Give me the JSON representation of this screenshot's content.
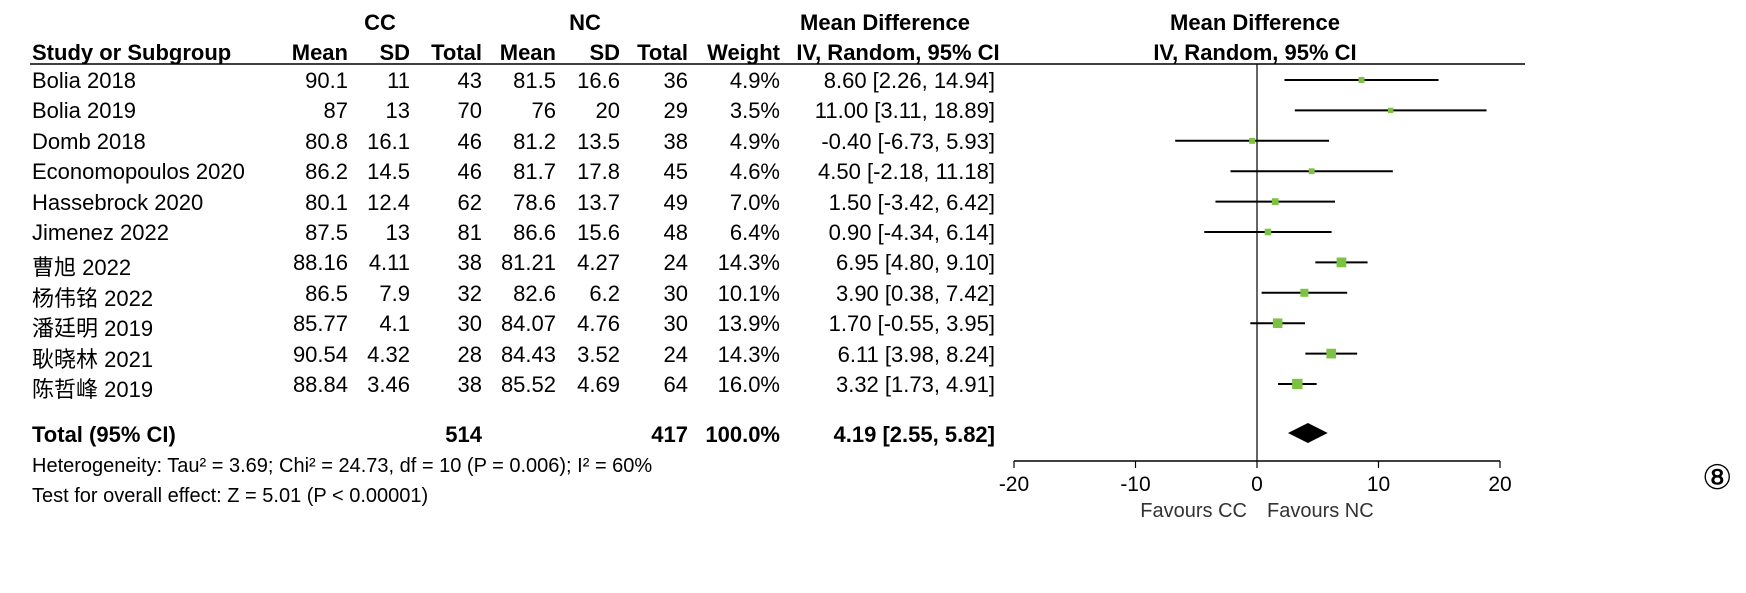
{
  "header": {
    "group1": "CC",
    "group2": "NC",
    "md_title": "Mean Difference",
    "md_title_plot": "Mean Difference",
    "columns": {
      "study": "Study or Subgroup",
      "mean1": "Mean",
      "sd1": "SD",
      "total1": "Total",
      "mean2": "Mean",
      "sd2": "SD",
      "total2": "Total",
      "weight": "Weight",
      "method": "IV, Random, 95% CI",
      "method_plot": "IV, Random, 95% CI"
    }
  },
  "studies": [
    {
      "name": "Bolia 2018",
      "mean1": "90.1",
      "sd1": "11",
      "total1": "43",
      "mean2": "81.5",
      "sd2": "16.6",
      "total2": "36",
      "weight": "4.9%",
      "ci": "8.60 [2.26, 14.94]"
    },
    {
      "name": "Bolia 2019",
      "mean1": "87",
      "sd1": "13",
      "total1": "70",
      "mean2": "76",
      "sd2": "20",
      "total2": "29",
      "weight": "3.5%",
      "ci": "11.00 [3.11, 18.89]"
    },
    {
      "name": "Domb 2018",
      "mean1": "80.8",
      "sd1": "16.1",
      "total1": "46",
      "mean2": "81.2",
      "sd2": "13.5",
      "total2": "38",
      "weight": "4.9%",
      "ci": "-0.40 [-6.73, 5.93]"
    },
    {
      "name": "Economopoulos 2020",
      "mean1": "86.2",
      "sd1": "14.5",
      "total1": "46",
      "mean2": "81.7",
      "sd2": "17.8",
      "total2": "45",
      "weight": "4.6%",
      "ci": "4.50 [-2.18, 11.18]"
    },
    {
      "name": "Hassebrock 2020",
      "mean1": "80.1",
      "sd1": "12.4",
      "total1": "62",
      "mean2": "78.6",
      "sd2": "13.7",
      "total2": "49",
      "weight": "7.0%",
      "ci": "1.50 [-3.42, 6.42]"
    },
    {
      "name": "Jimenez 2022",
      "mean1": "87.5",
      "sd1": "13",
      "total1": "81",
      "mean2": "86.6",
      "sd2": "15.6",
      "total2": "48",
      "weight": "6.4%",
      "ci": "0.90 [-4.34, 6.14]"
    },
    {
      "name": "曹旭 2022",
      "mean1": "88.16",
      "sd1": "4.11",
      "total1": "38",
      "mean2": "81.21",
      "sd2": "4.27",
      "total2": "24",
      "weight": "14.3%",
      "ci": "6.95 [4.80, 9.10]"
    },
    {
      "name": "杨伟铭 2022",
      "mean1": "86.5",
      "sd1": "7.9",
      "total1": "32",
      "mean2": "82.6",
      "sd2": "6.2",
      "total2": "30",
      "weight": "10.1%",
      "ci": "3.90 [0.38, 7.42]"
    },
    {
      "name": "潘廷明 2019",
      "mean1": "85.77",
      "sd1": "4.1",
      "total1": "30",
      "mean2": "84.07",
      "sd2": "4.76",
      "total2": "30",
      "weight": "13.9%",
      "ci": "1.70 [-0.55, 3.95]"
    },
    {
      "name": "耿晓林 2021",
      "mean1": "90.54",
      "sd1": "4.32",
      "total1": "28",
      "mean2": "84.43",
      "sd2": "3.52",
      "total2": "24",
      "weight": "14.3%",
      "ci": "6.11 [3.98, 8.24]"
    },
    {
      "name": "陈哲峰 2019",
      "mean1": "88.84",
      "sd1": "3.46",
      "total1": "38",
      "mean2": "85.52",
      "sd2": "4.69",
      "total2": "64",
      "weight": "16.0%",
      "ci": "3.32 [1.73, 4.91]"
    }
  ],
  "total": {
    "label": "Total (95% CI)",
    "total1": "514",
    "total2": "417",
    "weight": "100.0%",
    "ci": "4.19 [2.55, 5.82]"
  },
  "heterogeneity": "Heterogeneity: Tau² = 3.69; Chi² = 24.73, df = 10 (P = 0.006); I² = 60%",
  "overall_effect": "Test for overall effect: Z = 5.01 (P < 0.00001)",
  "figure_marker": "⑧",
  "chart_data": {
    "type": "forest",
    "title": "Mean Difference",
    "subtitle": "IV, Random, 95% CI",
    "xlim": [
      -20,
      20
    ],
    "xticks": [
      "-20",
      "-10",
      "0",
      "10",
      "20"
    ],
    "xlabel_left": "Favours CC",
    "xlabel_right": "Favours NC",
    "studies": [
      {
        "label": "Bolia 2018",
        "md": 8.6,
        "lo": 2.26,
        "hi": 14.94,
        "weight": 4.9
      },
      {
        "label": "Bolia 2019",
        "md": 11.0,
        "lo": 3.11,
        "hi": 18.89,
        "weight": 3.5
      },
      {
        "label": "Domb 2018",
        "md": -0.4,
        "lo": -6.73,
        "hi": 5.93,
        "weight": 4.9
      },
      {
        "label": "Economopoulos 2020",
        "md": 4.5,
        "lo": -2.18,
        "hi": 11.18,
        "weight": 4.6
      },
      {
        "label": "Hassebrock 2020",
        "md": 1.5,
        "lo": -3.42,
        "hi": 6.42,
        "weight": 7.0
      },
      {
        "label": "Jimenez 2022",
        "md": 0.9,
        "lo": -4.34,
        "hi": 6.14,
        "weight": 6.4
      },
      {
        "label": "曹旭 2022",
        "md": 6.95,
        "lo": 4.8,
        "hi": 9.1,
        "weight": 14.3
      },
      {
        "label": "杨伟铭 2022",
        "md": 3.9,
        "lo": 0.38,
        "hi": 7.42,
        "weight": 10.1
      },
      {
        "label": "潘廷明 2019",
        "md": 1.7,
        "lo": -0.55,
        "hi": 3.95,
        "weight": 13.9
      },
      {
        "label": "耿晓林 2021",
        "md": 6.11,
        "lo": 3.98,
        "hi": 8.24,
        "weight": 14.3
      },
      {
        "label": "陈哲峰 2019",
        "md": 3.32,
        "lo": 1.73,
        "hi": 4.91,
        "weight": 16.0
      }
    ],
    "pooled": {
      "md": 4.19,
      "lo": 2.55,
      "hi": 5.82
    },
    "colors": {
      "square": "#7dc243",
      "diamond": "#000000"
    }
  }
}
